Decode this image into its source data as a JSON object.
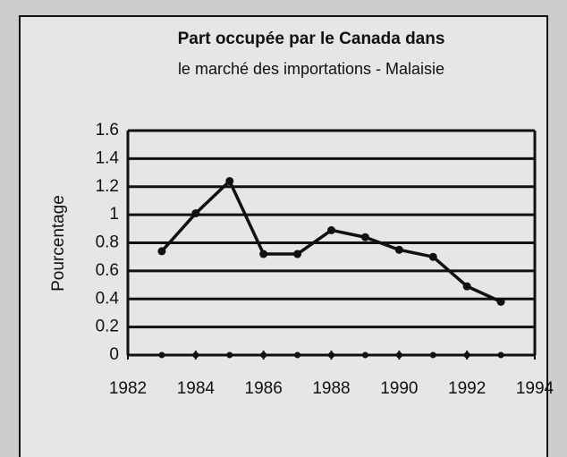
{
  "chart_data": {
    "type": "line",
    "title": "Part occupée par le Canada dans",
    "subtitle": "le marché des importations - Malaisie",
    "y_label": "Pourcentage",
    "x": [
      1983,
      1984,
      1985,
      1986,
      1987,
      1988,
      1989,
      1990,
      1991,
      1992,
      1993
    ],
    "values": [
      0.74,
      1.01,
      1.24,
      0.72,
      0.72,
      0.89,
      0.84,
      0.75,
      0.7,
      0.49,
      0.38
    ],
    "color": "#111111",
    "xlim": [
      1982,
      1994
    ],
    "xticks": [
      1982,
      1984,
      1986,
      1988,
      1990,
      1992,
      1994
    ],
    "ylim": [
      0,
      1.6
    ],
    "yticks": [
      0,
      0.2,
      0.4,
      0.6,
      0.8,
      1,
      1.2,
      1.4,
      1.6
    ],
    "grid": true
  }
}
